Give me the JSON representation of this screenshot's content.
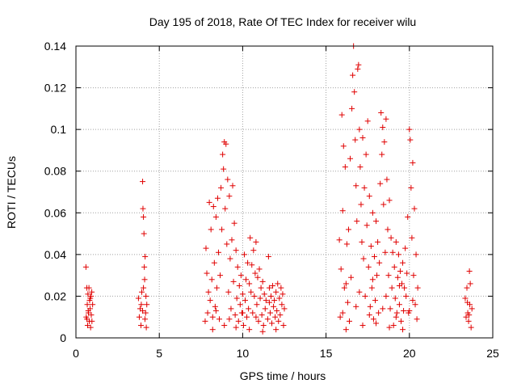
{
  "chart_data": {
    "type": "scatter",
    "title": "Day 195 of 2018, Rate Of TEC Index for receiver wilu",
    "xlabel": "GPS time / hours",
    "ylabel": "ROTI / TECUs",
    "xlim": [
      0,
      25
    ],
    "ylim": [
      0,
      0.14
    ],
    "grid": true,
    "marker": "plus",
    "color": "#e00000",
    "x_ticks": [
      {
        "value": 0,
        "label": "0"
      },
      {
        "value": 5,
        "label": "5"
      },
      {
        "value": 10,
        "label": "10"
      },
      {
        "value": 15,
        "label": "15"
      },
      {
        "value": 20,
        "label": "20"
      },
      {
        "value": 25,
        "label": "25"
      }
    ],
    "y_ticks": [
      {
        "value": 0,
        "label": "0"
      },
      {
        "value": 0.02,
        "label": "0.02"
      },
      {
        "value": 0.04,
        "label": "0.04"
      },
      {
        "value": 0.06,
        "label": "0.06"
      },
      {
        "value": 0.08,
        "label": "0.08"
      },
      {
        "value": 0.1,
        "label": "0.1"
      },
      {
        "value": 0.12,
        "label": "0.12"
      },
      {
        "value": 0.14,
        "label": "0.14"
      }
    ],
    "series": [
      {
        "name": "ROTI",
        "points": [
          [
            0.6,
            0.034
          ],
          [
            0.62,
            0.01
          ],
          [
            0.65,
            0.024
          ],
          [
            0.68,
            0.016
          ],
          [
            0.7,
            0.006
          ],
          [
            0.72,
            0.021
          ],
          [
            0.75,
            0.012
          ],
          [
            0.78,
            0.024
          ],
          [
            0.8,
            0.008
          ],
          [
            0.82,
            0.018
          ],
          [
            0.85,
            0.014
          ],
          [
            0.88,
            0.005
          ],
          [
            0.9,
            0.02
          ],
          [
            0.92,
            0.011
          ],
          [
            0.95,
            0.022
          ],
          [
            1.0,
            0.016
          ],
          [
            0.66,
            0.009
          ],
          [
            0.74,
            0.013
          ],
          [
            0.86,
            0.019
          ],
          [
            0.96,
            0.008
          ],
          [
            3.75,
            0.019
          ],
          [
            3.8,
            0.01
          ],
          [
            3.85,
            0.014
          ],
          [
            3.9,
            0.006
          ],
          [
            3.95,
            0.022
          ],
          [
            4.0,
            0.075
          ],
          [
            4.02,
            0.062
          ],
          [
            4.05,
            0.058
          ],
          [
            4.08,
            0.05
          ],
          [
            4.1,
            0.034
          ],
          [
            4.12,
            0.028
          ],
          [
            4.15,
            0.039
          ],
          [
            4.18,
            0.012
          ],
          [
            4.2,
            0.02
          ],
          [
            4.22,
            0.005
          ],
          [
            4.25,
            0.016
          ],
          [
            4.05,
            0.024
          ],
          [
            3.92,
            0.016
          ],
          [
            4.14,
            0.009
          ],
          [
            4.0,
            0.013
          ],
          [
            7.75,
            0.008
          ],
          [
            7.8,
            0.043
          ],
          [
            7.85,
            0.031
          ],
          [
            7.9,
            0.012
          ],
          [
            7.95,
            0.022
          ],
          [
            8.0,
            0.065
          ],
          [
            8.05,
            0.018
          ],
          [
            8.1,
            0.052
          ],
          [
            8.15,
            0.028
          ],
          [
            8.2,
            0.01
          ],
          [
            8.25,
            0.063
          ],
          [
            8.3,
            0.036
          ],
          [
            8.35,
            0.015
          ],
          [
            8.4,
            0.058
          ],
          [
            8.45,
            0.024
          ],
          [
            8.5,
            0.067
          ],
          [
            8.55,
            0.041
          ],
          [
            8.6,
            0.009
          ],
          [
            8.65,
            0.03
          ],
          [
            8.7,
            0.072
          ],
          [
            8.75,
            0.052
          ],
          [
            8.8,
            0.088
          ],
          [
            8.85,
            0.081
          ],
          [
            8.9,
            0.094
          ],
          [
            8.95,
            0.062
          ],
          [
            9.0,
            0.093
          ],
          [
            9.05,
            0.045
          ],
          [
            9.1,
            0.076
          ],
          [
            9.15,
            0.022
          ],
          [
            9.2,
            0.068
          ],
          [
            9.25,
            0.038
          ],
          [
            9.3,
            0.014
          ],
          [
            9.35,
            0.047
          ],
          [
            9.4,
            0.073
          ],
          [
            9.45,
            0.027
          ],
          [
            9.5,
            0.055
          ],
          [
            9.55,
            0.011
          ],
          [
            9.6,
            0.042
          ],
          [
            9.65,
            0.019
          ],
          [
            9.7,
            0.034
          ],
          [
            9.75,
            0.008
          ],
          [
            9.8,
            0.025
          ],
          [
            9.85,
            0.016
          ],
          [
            9.9,
            0.03
          ],
          [
            9.95,
            0.012
          ],
          [
            10.0,
            0.021
          ],
          [
            10.05,
            0.006
          ],
          [
            10.1,
            0.04
          ],
          [
            10.15,
            0.018
          ],
          [
            10.2,
            0.028
          ],
          [
            10.25,
            0.01
          ],
          [
            10.3,
            0.036
          ],
          [
            10.35,
            0.014
          ],
          [
            10.4,
            0.026
          ],
          [
            10.45,
            0.048
          ],
          [
            10.5,
            0.022
          ],
          [
            10.55,
            0.035
          ],
          [
            10.6,
            0.012
          ],
          [
            10.65,
            0.042
          ],
          [
            10.7,
            0.02
          ],
          [
            10.75,
            0.031
          ],
          [
            10.8,
            0.046
          ],
          [
            10.85,
            0.016
          ],
          [
            10.9,
            0.029
          ],
          [
            10.95,
            0.008
          ],
          [
            11.0,
            0.033
          ],
          [
            11.05,
            0.019
          ],
          [
            11.1,
            0.024
          ],
          [
            11.15,
            0.011
          ],
          [
            11.2,
            0.027
          ],
          [
            11.25,
            0.006
          ],
          [
            11.3,
            0.021
          ],
          [
            11.35,
            0.014
          ],
          [
            11.4,
            0.018
          ],
          [
            11.5,
            0.009
          ],
          [
            11.55,
            0.039
          ],
          [
            11.6,
            0.024
          ],
          [
            11.65,
            0.012
          ],
          [
            11.7,
            0.02
          ],
          [
            11.75,
            0.007
          ],
          [
            11.8,
            0.025
          ],
          [
            11.85,
            0.015
          ],
          [
            11.9,
            0.018
          ],
          [
            11.95,
            0.01
          ],
          [
            12.0,
            0.022
          ],
          [
            12.05,
            0.013
          ],
          [
            12.1,
            0.026
          ],
          [
            12.15,
            0.008
          ],
          [
            12.2,
            0.019
          ],
          [
            12.25,
            0.011
          ],
          [
            12.3,
            0.024
          ],
          [
            12.35,
            0.016
          ],
          [
            12.4,
            0.021
          ],
          [
            12.45,
            0.006
          ],
          [
            12.5,
            0.014
          ],
          [
            8.2,
            0.004
          ],
          [
            8.9,
            0.006
          ],
          [
            9.6,
            0.005
          ],
          [
            10.4,
            0.004
          ],
          [
            11.2,
            0.003
          ],
          [
            12.0,
            0.004
          ],
          [
            8.4,
            0.013
          ],
          [
            9.2,
            0.009
          ],
          [
            10.0,
            0.012
          ],
          [
            10.8,
            0.01
          ],
          [
            11.6,
            0.017
          ],
          [
            15.8,
            0.047
          ],
          [
            15.85,
            0.01
          ],
          [
            15.9,
            0.033
          ],
          [
            15.95,
            0.107
          ],
          [
            16.0,
            0.061
          ],
          [
            16.05,
            0.092
          ],
          [
            16.1,
            0.024
          ],
          [
            16.15,
            0.082
          ],
          [
            16.2,
            0.004
          ],
          [
            16.25,
            0.045
          ],
          [
            16.3,
            0.017
          ],
          [
            16.35,
            0.052
          ],
          [
            16.45,
            0.086
          ],
          [
            16.5,
            0.029
          ],
          [
            16.55,
            0.11
          ],
          [
            16.6,
            0.126
          ],
          [
            16.65,
            0.14
          ],
          [
            16.7,
            0.118
          ],
          [
            16.75,
            0.095
          ],
          [
            16.8,
            0.073
          ],
          [
            16.85,
            0.056
          ],
          [
            16.9,
            0.129
          ],
          [
            16.95,
            0.131
          ],
          [
            17.0,
            0.1
          ],
          [
            17.05,
            0.082
          ],
          [
            17.1,
            0.064
          ],
          [
            17.15,
            0.046
          ],
          [
            17.2,
            0.096
          ],
          [
            17.25,
            0.038
          ],
          [
            17.3,
            0.072
          ],
          [
            17.35,
            0.02
          ],
          [
            17.4,
            0.088
          ],
          [
            17.45,
            0.054
          ],
          [
            17.5,
            0.104
          ],
          [
            17.55,
            0.034
          ],
          [
            17.6,
            0.068
          ],
          [
            17.65,
            0.015
          ],
          [
            17.7,
            0.044
          ],
          [
            17.75,
            0.024
          ],
          [
            17.8,
            0.06
          ],
          [
            17.85,
            0.009
          ],
          [
            17.9,
            0.039
          ],
          [
            17.95,
            0.018
          ],
          [
            18.0,
            0.056
          ],
          [
            18.05,
            0.03
          ],
          [
            18.1,
            0.046
          ],
          [
            18.15,
            0.012
          ],
          [
            18.2,
            0.036
          ],
          [
            18.25,
            0.074
          ],
          [
            18.3,
            0.108
          ],
          [
            18.35,
            0.088
          ],
          [
            18.4,
            0.101
          ],
          [
            18.45,
            0.064
          ],
          [
            18.5,
            0.094
          ],
          [
            18.55,
            0.041
          ],
          [
            18.6,
            0.105
          ],
          [
            18.65,
            0.076
          ],
          [
            18.7,
            0.052
          ],
          [
            18.75,
            0.03
          ],
          [
            18.8,
            0.066
          ],
          [
            18.85,
            0.014
          ],
          [
            18.9,
            0.048
          ],
          [
            18.95,
            0.024
          ],
          [
            19.0,
            0.041
          ],
          [
            19.05,
            0.006
          ],
          [
            19.1,
            0.034
          ],
          [
            19.15,
            0.019
          ],
          [
            19.2,
            0.046
          ],
          [
            19.25,
            0.012
          ],
          [
            19.3,
            0.029
          ],
          [
            19.35,
            0.04
          ],
          [
            19.4,
            0.016
          ],
          [
            19.45,
            0.032
          ],
          [
            19.5,
            0.008
          ],
          [
            19.55,
            0.026
          ],
          [
            19.6,
            0.036
          ],
          [
            19.65,
            0.013
          ],
          [
            19.7,
            0.024
          ],
          [
            19.75,
            0.043
          ],
          [
            19.8,
            0.02
          ],
          [
            19.85,
            0.031
          ],
          [
            19.9,
            0.058
          ],
          [
            19.95,
            0.012
          ],
          [
            20.0,
            0.1
          ],
          [
            20.05,
            0.095
          ],
          [
            20.1,
            0.072
          ],
          [
            20.15,
            0.048
          ],
          [
            20.2,
            0.084
          ],
          [
            20.25,
            0.03
          ],
          [
            20.3,
            0.062
          ],
          [
            20.35,
            0.016
          ],
          [
            20.4,
            0.04
          ],
          [
            20.45,
            0.009
          ],
          [
            20.5,
            0.024
          ],
          [
            16.0,
            0.012
          ],
          [
            16.4,
            0.008
          ],
          [
            16.8,
            0.015
          ],
          [
            17.2,
            0.006
          ],
          [
            17.6,
            0.011
          ],
          [
            18.0,
            0.007
          ],
          [
            18.4,
            0.014
          ],
          [
            18.8,
            0.005
          ],
          [
            19.2,
            0.01
          ],
          [
            19.6,
            0.004
          ],
          [
            20.0,
            0.013
          ],
          [
            16.2,
            0.026
          ],
          [
            17.0,
            0.022
          ],
          [
            17.8,
            0.028
          ],
          [
            18.6,
            0.02
          ],
          [
            19.4,
            0.025
          ],
          [
            20.2,
            0.018
          ],
          [
            23.35,
            0.019
          ],
          [
            23.4,
            0.01
          ],
          [
            23.45,
            0.024
          ],
          [
            23.5,
            0.012
          ],
          [
            23.55,
            0.008
          ],
          [
            23.6,
            0.032
          ],
          [
            23.62,
            0.016
          ],
          [
            23.65,
            0.026
          ],
          [
            23.7,
            0.005
          ],
          [
            23.75,
            0.014
          ],
          [
            23.48,
            0.017
          ],
          [
            23.58,
            0.011
          ]
        ]
      }
    ]
  }
}
